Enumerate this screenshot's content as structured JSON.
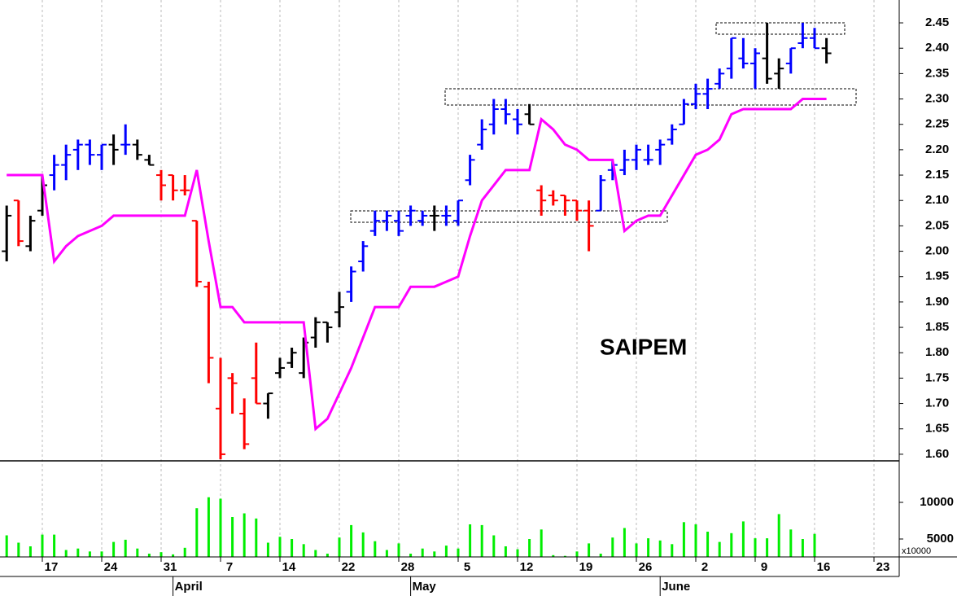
{
  "chart_data": [
    {
      "type": "ohlc",
      "title": "SAIPEM",
      "categories": [
        null,
        null,
        null,
        "17",
        null,
        null,
        null,
        null,
        "24",
        null,
        null,
        null,
        null,
        "31",
        null,
        null,
        null,
        null,
        "7",
        null,
        null,
        null,
        null,
        "14",
        null,
        null,
        null,
        null,
        "22",
        null,
        null,
        null,
        null,
        "28",
        null,
        null,
        null,
        null,
        "5",
        null,
        null,
        null,
        null,
        "12",
        null,
        null,
        null,
        null,
        "19",
        null,
        null,
        null,
        null,
        "26",
        null,
        null,
        null,
        null,
        "2",
        null,
        null,
        null,
        null,
        "9",
        null,
        null,
        null,
        null,
        "16",
        null,
        null,
        null,
        null,
        "23",
        null,
        null
      ],
      "months": [
        null,
        null,
        null,
        null,
        null,
        null,
        null,
        null,
        null,
        null,
        null,
        null,
        null,
        null,
        "April",
        null,
        null,
        null,
        null,
        null,
        null,
        null,
        null,
        null,
        null,
        null,
        null,
        null,
        null,
        null,
        null,
        null,
        null,
        null,
        "May",
        null,
        null,
        null,
        null,
        null,
        null,
        null,
        null,
        null,
        null,
        null,
        null,
        null,
        null,
        null,
        null,
        null,
        null,
        null,
        null,
        "June",
        null,
        null,
        null,
        null,
        null,
        null,
        null,
        null,
        null,
        null,
        null,
        null,
        null,
        null,
        null,
        null,
        null,
        null,
        null,
        null
      ],
      "open": [
        2.0,
        2.1,
        2.01,
        2.08,
        2.15,
        2.17,
        2.2,
        2.21,
        2.19,
        2.21,
        2.21,
        2.21,
        2.18,
        2.15,
        2.15,
        2.12,
        2.06,
        1.93,
        1.69,
        1.75,
        1.68,
        1.75,
        1.7,
        1.76,
        1.78,
        1.76,
        1.83,
        1.86,
        1.88,
        1.92,
        1.98,
        2.04,
        2.06,
        2.06,
        2.07,
        2.06,
        2.07,
        2.07,
        2.06,
        2.14,
        2.21,
        2.25,
        2.28,
        2.26,
        2.27,
        2.12,
        2.11,
        2.11,
        2.1,
        2.08,
        2.08,
        2.16,
        2.16,
        2.18,
        2.18,
        2.2,
        2.22,
        2.25,
        2.29,
        2.31,
        2.33,
        2.36,
        2.38,
        2.37,
        2.38,
        2.35,
        2.37,
        2.41,
        2.42,
        2.4,
        null,
        null,
        null,
        null,
        null,
        null
      ],
      "high": [
        2.09,
        2.1,
        2.07,
        2.15,
        2.19,
        2.21,
        2.22,
        2.22,
        2.21,
        2.23,
        2.25,
        2.22,
        2.19,
        2.16,
        2.15,
        2.15,
        2.06,
        1.94,
        1.79,
        1.76,
        1.71,
        1.82,
        1.72,
        1.79,
        1.81,
        1.83,
        1.87,
        1.86,
        1.92,
        1.97,
        2.02,
        2.08,
        2.08,
        2.08,
        2.09,
        2.08,
        2.09,
        2.09,
        2.1,
        2.19,
        2.26,
        2.3,
        2.3,
        2.28,
        2.29,
        2.13,
        2.12,
        2.11,
        2.1,
        2.1,
        2.15,
        2.18,
        2.2,
        2.21,
        2.21,
        2.22,
        2.25,
        2.3,
        2.33,
        2.34,
        2.36,
        2.42,
        2.42,
        2.4,
        2.45,
        2.38,
        2.4,
        2.45,
        2.44,
        2.42,
        null,
        null,
        null,
        null,
        null,
        null
      ],
      "low": [
        1.98,
        2.01,
        2.0,
        2.07,
        2.12,
        2.14,
        2.16,
        2.17,
        2.16,
        2.17,
        2.19,
        2.18,
        2.17,
        2.1,
        2.1,
        2.11,
        1.93,
        1.74,
        1.59,
        1.68,
        1.61,
        1.7,
        1.67,
        1.75,
        1.77,
        1.75,
        1.81,
        1.82,
        1.85,
        1.9,
        1.96,
        2.03,
        2.04,
        2.03,
        2.05,
        2.05,
        2.04,
        2.05,
        2.05,
        2.13,
        2.2,
        2.23,
        2.25,
        2.23,
        2.25,
        2.07,
        2.09,
        2.07,
        2.06,
        2.0,
        2.08,
        2.14,
        2.15,
        2.16,
        2.17,
        2.17,
        2.21,
        2.25,
        2.28,
        2.28,
        2.32,
        2.34,
        2.36,
        2.32,
        2.33,
        2.32,
        2.35,
        2.4,
        2.4,
        2.37,
        null,
        null,
        null,
        null,
        null,
        null
      ],
      "close": [
        2.07,
        2.02,
        2.06,
        2.13,
        2.17,
        2.19,
        2.21,
        2.19,
        2.21,
        2.2,
        2.21,
        2.19,
        2.17,
        2.13,
        2.12,
        2.12,
        1.94,
        1.79,
        1.6,
        1.74,
        1.62,
        1.7,
        1.72,
        1.77,
        1.8,
        1.82,
        1.86,
        1.85,
        1.89,
        1.96,
        2.01,
        2.06,
        2.07,
        2.04,
        2.08,
        2.07,
        2.07,
        2.07,
        2.1,
        2.18,
        2.24,
        2.28,
        2.27,
        2.25,
        2.25,
        2.1,
        2.1,
        2.1,
        2.08,
        2.05,
        2.14,
        2.17,
        2.18,
        2.2,
        2.18,
        2.21,
        2.24,
        2.29,
        2.31,
        2.32,
        2.35,
        2.42,
        2.37,
        2.39,
        2.34,
        2.36,
        2.4,
        2.42,
        2.4,
        2.39,
        null,
        null,
        null,
        null,
        null,
        null
      ],
      "colors": [
        "#000000",
        "#ff0000",
        "#000000",
        "#000000",
        "#0000ff",
        "#0000ff",
        "#0000ff",
        "#0000ff",
        "#0000ff",
        "#000000",
        "#0000ff",
        "#000000",
        "#000000",
        "#ff0000",
        "#ff0000",
        "#ff0000",
        "#ff0000",
        "#ff0000",
        "#ff0000",
        "#ff0000",
        "#ff0000",
        "#ff0000",
        "#000000",
        "#000000",
        "#000000",
        "#000000",
        "#000000",
        "#000000",
        "#000000",
        "#0000ff",
        "#0000ff",
        "#0000ff",
        "#0000ff",
        "#0000ff",
        "#0000ff",
        "#0000ff",
        "#000000",
        "#0000ff",
        "#0000ff",
        "#0000ff",
        "#0000ff",
        "#0000ff",
        "#0000ff",
        "#0000ff",
        "#000000",
        "#ff0000",
        "#ff0000",
        "#ff0000",
        "#ff0000",
        "#ff0000",
        "#0000ff",
        "#0000ff",
        "#0000ff",
        "#0000ff",
        "#0000ff",
        "#0000ff",
        "#0000ff",
        "#0000ff",
        "#0000ff",
        "#0000ff",
        "#0000ff",
        "#0000ff",
        "#0000ff",
        "#0000ff",
        "#000000",
        "#000000",
        "#0000ff",
        "#0000ff",
        "#0000ff",
        "#000000",
        null,
        null,
        null,
        null,
        null,
        null
      ],
      "stop": {
        "color": "#ff00ff",
        "values": [
          2.15,
          2.15,
          2.15,
          2.15,
          1.98,
          2.01,
          2.03,
          2.04,
          2.05,
          2.07,
          2.07,
          2.07,
          2.07,
          2.07,
          2.07,
          2.07,
          2.16,
          2.02,
          1.89,
          1.89,
          1.86,
          1.86,
          1.86,
          1.86,
          1.86,
          1.86,
          1.65,
          1.67,
          1.72,
          1.77,
          1.83,
          1.89,
          1.89,
          1.89,
          1.93,
          1.93,
          1.93,
          1.94,
          1.95,
          2.03,
          2.1,
          2.13,
          2.16,
          2.16,
          2.16,
          2.26,
          2.24,
          2.21,
          2.2,
          2.18,
          2.18,
          2.18,
          2.04,
          2.06,
          2.07,
          2.07,
          2.11,
          2.15,
          2.19,
          2.2,
          2.22,
          2.27,
          2.28,
          2.28,
          2.28,
          2.28,
          2.28,
          2.3,
          2.3,
          2.3,
          null,
          null,
          null,
          null,
          null,
          null
        ]
      },
      "ylim": [
        1.587,
        2.495
      ],
      "yticks": [
        {
          "value": 1.6,
          "label": "1.60"
        },
        {
          "value": 1.65,
          "label": "1.65"
        },
        {
          "value": 1.7,
          "label": "1.70"
        },
        {
          "value": 1.75,
          "label": "1.75"
        },
        {
          "value": 1.8,
          "label": "1.80"
        },
        {
          "value": 1.85,
          "label": "1.85"
        },
        {
          "value": 1.9,
          "label": "1.90"
        },
        {
          "value": 1.95,
          "label": "1.95"
        },
        {
          "value": 2.0,
          "label": "2.00"
        },
        {
          "value": 2.05,
          "label": "2.05"
        },
        {
          "value": 2.1,
          "label": "2.10"
        },
        {
          "value": 2.15,
          "label": "2.15"
        },
        {
          "value": 2.2,
          "label": "2.20"
        },
        {
          "value": 2.25,
          "label": "2.25"
        },
        {
          "value": 2.3,
          "label": "2.30"
        },
        {
          "value": 2.35,
          "label": "2.35"
        },
        {
          "value": 2.4,
          "label": "2.40"
        },
        {
          "value": 2.45,
          "label": "2.45"
        }
      ],
      "grid": true
    },
    {
      "type": "bar",
      "color": "#00ee00",
      "values": [
        5500,
        4500,
        4000,
        5600,
        5600,
        3500,
        3700,
        3300,
        3300,
        4600,
        4900,
        3700,
        3000,
        3200,
        2900,
        3800,
        9200,
        10700,
        10500,
        8000,
        8500,
        7800,
        4500,
        5300,
        5000,
        4300,
        3500,
        3000,
        5200,
        6900,
        5900,
        4700,
        3500,
        4400,
        3000,
        3700,
        3300,
        4100,
        3700,
        7000,
        6900,
        5500,
        4000,
        3600,
        5000,
        6300,
        2800,
        2700,
        3300,
        4400,
        3000,
        5200,
        6500,
        4400,
        5100,
        4800,
        4300,
        7300,
        7000,
        6000,
        4600,
        5800,
        7400,
        5100,
        5100,
        8400,
        6300,
        5000,
        5700,
        2600,
        null,
        null,
        null,
        null,
        null,
        null
      ],
      "ylim": [
        2556,
        15667
      ],
      "yticks": [
        5000,
        10000
      ],
      "axis_note": "x10000"
    }
  ]
}
